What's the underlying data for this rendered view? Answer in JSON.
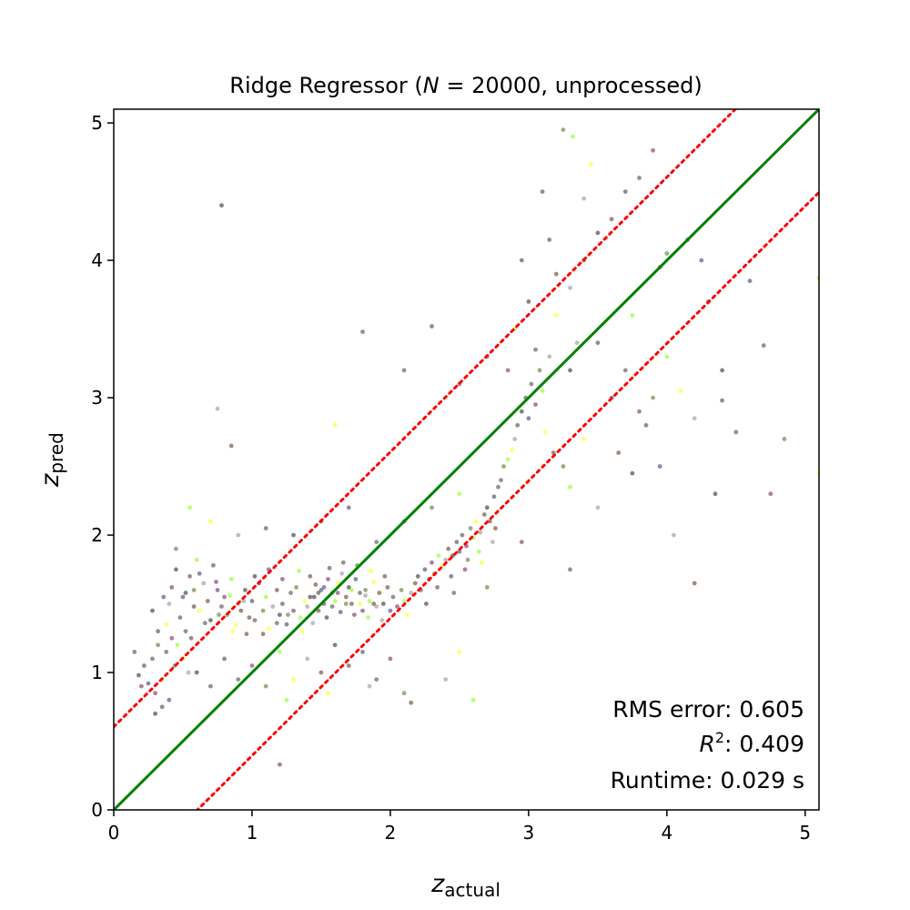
{
  "chart_data": {
    "type": "scatter",
    "title_parts": [
      "Ridge Regressor (",
      "N",
      " = 20000, unprocessed)"
    ],
    "xlabel": {
      "base": "z",
      "sub": "actual"
    },
    "ylabel": {
      "base": "z",
      "sub": "pred"
    },
    "xlim": [
      0,
      5.1
    ],
    "ylim": [
      0,
      5.1
    ],
    "xticks": [
      "0",
      "1",
      "2",
      "3",
      "4",
      "5"
    ],
    "yticks": [
      "0",
      "1",
      "2",
      "3",
      "4",
      "5"
    ],
    "grid": false,
    "stats": {
      "rms_label": "RMS error: 0.605",
      "r2_symbol": "R",
      "r2_power": "2",
      "r2_value": ": 0.409",
      "runtime_label": "Runtime: 0.029 s"
    },
    "reference_lines": [
      {
        "name": "identity",
        "style": "solid",
        "color": "#008000",
        "offset": 0
      },
      {
        "name": "upper-bound",
        "style": "dotted",
        "color": "#ff0000",
        "offset": 0.605
      },
      {
        "name": "lower-bound",
        "style": "dotted",
        "color": "#ff0000",
        "offset": -0.605
      }
    ],
    "point_colors": [
      "#1a1a1a",
      "#4d2a1a",
      "#2a2a6a",
      "#3a3a3a",
      "#6a1a4a",
      "#4a6a1a",
      "#7fff00",
      "#ffff00",
      "#8a8a8a",
      "#5a2a0a"
    ],
    "series": [
      {
        "name": "",
        "points": [
          [
            0.18,
            0.98
          ],
          [
            0.22,
            1.05
          ],
          [
            0.25,
            0.92
          ],
          [
            0.28,
            1.1
          ],
          [
            0.3,
            0.85
          ],
          [
            0.32,
            1.2
          ],
          [
            0.35,
            0.95
          ],
          [
            0.38,
            1.35
          ],
          [
            0.4,
            1.5
          ],
          [
            0.42,
            1.62
          ],
          [
            0.45,
            1.75
          ],
          [
            0.48,
            1.4
          ],
          [
            0.5,
            1.55
          ],
          [
            0.52,
            1.3
          ],
          [
            0.55,
            1.7
          ],
          [
            0.58,
            1.6
          ],
          [
            0.6,
            1.82
          ],
          [
            0.62,
            1.45
          ],
          [
            0.65,
            1.65
          ],
          [
            0.68,
            1.52
          ],
          [
            0.7,
            1.38
          ],
          [
            0.72,
            1.78
          ],
          [
            0.75,
            1.6
          ],
          [
            0.78,
            1.48
          ],
          [
            0.8,
            1.55
          ],
          [
            0.82,
            1.42
          ],
          [
            0.85,
            1.68
          ],
          [
            0.88,
            1.35
          ],
          [
            0.9,
            1.5
          ],
          [
            0.92,
            1.45
          ],
          [
            0.95,
            1.6
          ],
          [
            0.98,
            1.4
          ],
          [
            1.0,
            1.52
          ],
          [
            1.02,
            1.38
          ],
          [
            1.05,
            1.65
          ],
          [
            1.08,
            1.45
          ],
          [
            1.1,
            1.55
          ],
          [
            1.12,
            1.32
          ],
          [
            1.15,
            1.48
          ],
          [
            1.18,
            1.6
          ],
          [
            1.2,
            1.42
          ],
          [
            1.22,
            1.5
          ],
          [
            1.25,
            1.35
          ],
          [
            1.28,
            1.58
          ],
          [
            1.3,
            1.45
          ],
          [
            1.32,
            1.62
          ],
          [
            1.35,
            1.4
          ],
          [
            1.38,
            1.52
          ],
          [
            1.4,
            1.48
          ],
          [
            1.42,
            1.7
          ],
          [
            1.45,
            1.55
          ],
          [
            1.48,
            1.45
          ],
          [
            1.5,
            1.6
          ],
          [
            1.52,
            1.5
          ],
          [
            1.55,
            1.68
          ],
          [
            1.58,
            1.58
          ],
          [
            1.6,
            1.52
          ],
          [
            1.62,
            1.65
          ],
          [
            1.65,
            1.72
          ],
          [
            1.68,
            1.55
          ],
          [
            1.7,
            1.62
          ],
          [
            1.72,
            1.5
          ],
          [
            1.75,
            1.68
          ],
          [
            1.78,
            1.58
          ],
          [
            1.8,
            1.45
          ],
          [
            1.82,
            1.6
          ],
          [
            1.85,
            1.52
          ],
          [
            1.88,
            1.66
          ],
          [
            1.9,
            1.48
          ],
          [
            1.92,
            1.58
          ],
          [
            1.95,
            1.5
          ],
          [
            1.98,
            1.62
          ],
          [
            2.0,
            1.45
          ],
          [
            2.02,
            1.55
          ],
          [
            2.05,
            1.48
          ],
          [
            2.08,
            1.6
          ],
          [
            2.1,
            1.52
          ],
          [
            2.12,
            1.42
          ],
          [
            2.15,
            1.58
          ],
          [
            2.18,
            1.65
          ],
          [
            2.2,
            1.7
          ],
          [
            2.22,
            1.6
          ],
          [
            2.25,
            1.75
          ],
          [
            2.28,
            1.68
          ],
          [
            2.3,
            1.8
          ],
          [
            2.32,
            1.72
          ],
          [
            2.35,
            1.85
          ],
          [
            2.38,
            1.78
          ],
          [
            2.4,
            1.82
          ],
          [
            2.42,
            1.9
          ],
          [
            2.45,
            1.85
          ],
          [
            2.48,
            1.95
          ],
          [
            2.5,
            1.88
          ],
          [
            2.52,
            2.0
          ],
          [
            2.55,
            1.92
          ],
          [
            2.58,
            2.05
          ],
          [
            2.6,
            1.98
          ],
          [
            2.62,
            2.1
          ],
          [
            2.65,
            2.02
          ],
          [
            2.68,
            2.15
          ],
          [
            2.7,
            2.2
          ],
          [
            2.72,
            2.1
          ],
          [
            2.75,
            2.28
          ],
          [
            2.78,
            2.35
          ],
          [
            2.8,
            2.4
          ],
          [
            2.82,
            2.5
          ],
          [
            2.85,
            2.55
          ],
          [
            2.88,
            2.62
          ],
          [
            2.9,
            2.7
          ],
          [
            2.92,
            2.8
          ],
          [
            2.95,
            2.9
          ],
          [
            2.98,
            3.0
          ],
          [
            3.0,
            2.85
          ],
          [
            3.02,
            3.1
          ],
          [
            3.05,
            2.95
          ],
          [
            3.08,
            3.2
          ],
          [
            3.1,
            3.05
          ],
          [
            3.12,
            2.75
          ],
          [
            3.15,
            3.3
          ],
          [
            3.18,
            2.6
          ],
          [
            0.6,
            1.0
          ],
          [
            0.7,
            0.9
          ],
          [
            0.8,
            1.1
          ],
          [
            0.9,
            0.95
          ],
          [
            1.0,
            1.05
          ],
          [
            1.1,
            0.9
          ],
          [
            1.2,
            1.15
          ],
          [
            1.3,
            0.95
          ],
          [
            1.4,
            1.1
          ],
          [
            1.5,
            1.0
          ],
          [
            1.6,
            1.2
          ],
          [
            1.7,
            1.05
          ],
          [
            1.8,
            1.15
          ],
          [
            1.9,
            0.95
          ],
          [
            2.0,
            1.1
          ],
          [
            2.1,
            0.85
          ],
          [
            1.25,
            0.8
          ],
          [
            1.55,
            0.85
          ],
          [
            1.85,
            0.9
          ],
          [
            2.15,
            0.78
          ],
          [
            0.3,
            0.7
          ],
          [
            0.35,
            0.75
          ],
          [
            0.4,
            0.8
          ],
          [
            0.15,
            1.15
          ],
          [
            0.2,
            0.9
          ],
          [
            0.45,
            1.9
          ],
          [
            0.55,
            2.2
          ],
          [
            0.7,
            2.1
          ],
          [
            0.9,
            2.0
          ],
          [
            1.1,
            2.05
          ],
          [
            1.3,
            2.0
          ],
          [
            1.5,
            2.1
          ],
          [
            1.7,
            2.2
          ],
          [
            1.9,
            1.95
          ],
          [
            2.1,
            2.1
          ],
          [
            2.3,
            2.2
          ],
          [
            2.5,
            2.3
          ],
          [
            1.6,
            2.8
          ],
          [
            0.75,
            2.92
          ],
          [
            0.85,
            2.65
          ],
          [
            0.78,
            4.4
          ],
          [
            1.8,
            3.48
          ],
          [
            2.3,
            3.52
          ],
          [
            2.1,
            3.2
          ],
          [
            2.5,
            3.1
          ],
          [
            2.7,
            3.3
          ],
          [
            2.9,
            3.5
          ],
          [
            3.2,
            3.6
          ],
          [
            3.3,
            3.8
          ],
          [
            3.4,
            4.0
          ],
          [
            3.5,
            4.2
          ],
          [
            3.6,
            4.3
          ],
          [
            3.7,
            4.5
          ],
          [
            3.8,
            4.6
          ],
          [
            3.9,
            4.8
          ],
          [
            3.25,
            4.95
          ],
          [
            3.32,
            4.9
          ],
          [
            3.45,
            4.7
          ],
          [
            3.4,
            4.45
          ],
          [
            3.1,
            4.5
          ],
          [
            3.3,
            3.2
          ],
          [
            3.5,
            3.4
          ],
          [
            3.6,
            3.0
          ],
          [
            3.7,
            3.2
          ],
          [
            3.8,
            2.9
          ],
          [
            3.9,
            3.0
          ],
          [
            4.0,
            3.3
          ],
          [
            4.1,
            3.05
          ],
          [
            4.2,
            2.85
          ],
          [
            4.3,
            3.7
          ],
          [
            4.4,
            3.2
          ],
          [
            4.5,
            2.75
          ],
          [
            4.6,
            3.85
          ],
          [
            4.7,
            3.38
          ],
          [
            4.75,
            2.3
          ],
          [
            4.85,
            2.7
          ],
          [
            5.1,
            3.87
          ],
          [
            5.1,
            2.45
          ],
          [
            4.05,
            2.0
          ],
          [
            4.2,
            1.65
          ],
          [
            4.35,
            2.3
          ],
          [
            4.4,
            2.98
          ],
          [
            4.25,
            4.0
          ],
          [
            4.15,
            4.15
          ],
          [
            3.95,
            3.95
          ],
          [
            4.0,
            4.05
          ],
          [
            3.75,
            3.6
          ],
          [
            3.55,
            3.55
          ],
          [
            3.35,
            3.4
          ],
          [
            3.2,
            3.9
          ],
          [
            3.0,
            3.7
          ],
          [
            2.95,
            4.0
          ],
          [
            3.15,
            4.15
          ],
          [
            3.05,
            3.35
          ],
          [
            2.85,
            3.2
          ],
          [
            3.25,
            2.5
          ],
          [
            3.3,
            2.35
          ],
          [
            3.4,
            2.7
          ],
          [
            3.5,
            2.2
          ],
          [
            3.65,
            2.6
          ],
          [
            3.75,
            2.45
          ],
          [
            3.85,
            2.8
          ],
          [
            3.95,
            2.5
          ],
          [
            3.3,
            1.75
          ],
          [
            2.95,
            1.95
          ],
          [
            2.7,
            1.62
          ],
          [
            2.6,
            0.8
          ],
          [
            2.5,
            1.15
          ],
          [
            2.4,
            0.95
          ],
          [
            1.2,
            0.33
          ],
          [
            1.02,
            1.7
          ],
          [
            1.08,
            1.28
          ],
          [
            1.12,
            1.75
          ],
          [
            1.18,
            1.36
          ],
          [
            1.22,
            1.68
          ],
          [
            1.26,
            1.42
          ],
          [
            1.34,
            1.74
          ],
          [
            1.36,
            1.3
          ],
          [
            1.44,
            1.36
          ],
          [
            1.46,
            1.64
          ],
          [
            1.54,
            1.4
          ],
          [
            1.56,
            1.76
          ],
          [
            1.64,
            1.44
          ],
          [
            1.66,
            1.8
          ],
          [
            1.74,
            1.42
          ],
          [
            1.76,
            1.78
          ],
          [
            1.84,
            1.4
          ],
          [
            1.86,
            1.74
          ],
          [
            1.94,
            1.38
          ],
          [
            1.96,
            1.7
          ],
          [
            0.52,
            1.58
          ],
          [
            0.58,
            1.48
          ],
          [
            0.62,
            1.72
          ],
          [
            0.66,
            1.36
          ],
          [
            0.74,
            1.66
          ],
          [
            0.76,
            1.42
          ],
          [
            0.84,
            1.56
          ],
          [
            0.86,
            1.3
          ],
          [
            0.94,
            1.52
          ],
          [
            0.96,
            1.28
          ],
          [
            0.28,
            1.45
          ],
          [
            0.32,
            1.3
          ],
          [
            0.36,
            1.55
          ],
          [
            0.38,
            1.15
          ],
          [
            0.42,
            1.25
          ],
          [
            0.44,
            1.05
          ],
          [
            0.46,
            1.2
          ],
          [
            0.5,
            1.1
          ],
          [
            0.54,
            1.0
          ],
          [
            0.56,
            1.25
          ],
          [
            1.42,
            1.55
          ],
          [
            1.48,
            1.58
          ],
          [
            1.52,
            1.62
          ],
          [
            1.58,
            1.48
          ],
          [
            1.62,
            1.58
          ],
          [
            1.68,
            1.5
          ],
          [
            1.72,
            1.6
          ],
          [
            1.78,
            1.5
          ],
          [
            1.82,
            1.56
          ],
          [
            1.88,
            1.5
          ],
          [
            2.26,
            1.5
          ],
          [
            2.34,
            1.62
          ],
          [
            2.44,
            1.7
          ],
          [
            2.46,
            1.58
          ],
          [
            2.54,
            1.75
          ],
          [
            2.56,
            1.82
          ],
          [
            2.64,
            1.88
          ],
          [
            2.66,
            1.8
          ],
          [
            2.74,
            1.95
          ],
          [
            2.76,
            2.05
          ]
        ]
      }
    ]
  }
}
